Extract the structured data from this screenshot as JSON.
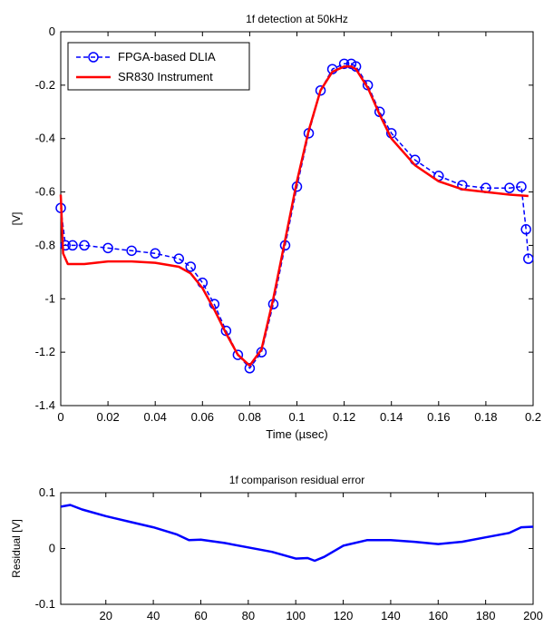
{
  "chart_data": [
    {
      "type": "line",
      "title": "1f detection at 50kHz",
      "xlabel": "Time (µsec)",
      "ylabel": "[V]",
      "xlim": [
        0,
        0.2
      ],
      "ylim": [
        -1.4,
        0
      ],
      "xticks": [
        "0",
        "0.02",
        "0.04",
        "0.06",
        "0.08",
        "0.1",
        "0.12",
        "0.14",
        "0.16",
        "0.18",
        "0.2"
      ],
      "yticks": [
        "0",
        "-0.2",
        "-0.4",
        "-0.6",
        "-0.8",
        "-1",
        "-1.2",
        "-1.4"
      ],
      "grid": false,
      "legend_position": "top-left",
      "series": [
        {
          "name": "FPGA-based DLIA",
          "color": "#0000ff",
          "style": "dashed-circle-markers",
          "x": [
            0,
            0.002,
            0.005,
            0.01,
            0.02,
            0.03,
            0.04,
            0.05,
            0.055,
            0.06,
            0.065,
            0.07,
            0.075,
            0.08,
            0.085,
            0.09,
            0.095,
            0.1,
            0.105,
            0.11,
            0.115,
            0.12,
            0.123,
            0.125,
            0.13,
            0.135,
            0.14,
            0.15,
            0.16,
            0.17,
            0.18,
            0.19,
            0.195,
            0.197,
            0.198
          ],
          "y": [
            -0.66,
            -0.8,
            -0.8,
            -0.8,
            -0.81,
            -0.82,
            -0.83,
            -0.85,
            -0.88,
            -0.94,
            -1.02,
            -1.12,
            -1.21,
            -1.26,
            -1.2,
            -1.02,
            -0.8,
            -0.58,
            -0.38,
            -0.22,
            -0.14,
            -0.12,
            -0.12,
            -0.13,
            -0.2,
            -0.3,
            -0.38,
            -0.48,
            -0.54,
            -0.575,
            -0.585,
            -0.585,
            -0.58,
            -0.74,
            -0.85
          ]
        },
        {
          "name": "SR830 Instrument",
          "color": "#ff0000",
          "style": "solid",
          "x": [
            0,
            0.001,
            0.003,
            0.01,
            0.02,
            0.03,
            0.04,
            0.05,
            0.055,
            0.06,
            0.065,
            0.07,
            0.075,
            0.08,
            0.085,
            0.09,
            0.095,
            0.1,
            0.105,
            0.11,
            0.115,
            0.12,
            0.123,
            0.125,
            0.13,
            0.135,
            0.14,
            0.15,
            0.16,
            0.17,
            0.18,
            0.19,
            0.198
          ],
          "y": [
            -0.61,
            -0.83,
            -0.87,
            -0.87,
            -0.86,
            -0.86,
            -0.865,
            -0.88,
            -0.905,
            -0.96,
            -1.04,
            -1.13,
            -1.21,
            -1.25,
            -1.19,
            -1.0,
            -0.78,
            -0.56,
            -0.37,
            -0.22,
            -0.15,
            -0.13,
            -0.13,
            -0.14,
            -0.21,
            -0.31,
            -0.4,
            -0.5,
            -0.56,
            -0.59,
            -0.6,
            -0.61,
            -0.615
          ]
        }
      ]
    },
    {
      "type": "line",
      "title": "1f comparison residual error",
      "xlabel": "",
      "ylabel": "Residual [V]",
      "xlim": [
        1,
        200
      ],
      "ylim": [
        -0.1,
        0.1
      ],
      "xticks": [
        "20",
        "40",
        "60",
        "80",
        "100",
        "120",
        "140",
        "160",
        "180",
        "200"
      ],
      "yticks": [
        "0.1",
        "0",
        "-0.1"
      ],
      "grid": false,
      "series": [
        {
          "color": "#0000ff",
          "style": "solid",
          "x": [
            1,
            5,
            10,
            20,
            30,
            40,
            50,
            55,
            60,
            70,
            80,
            90,
            100,
            105,
            108,
            112,
            120,
            130,
            140,
            150,
            160,
            170,
            180,
            190,
            195,
            200
          ],
          "y": [
            0.075,
            0.078,
            0.07,
            0.058,
            0.048,
            0.038,
            0.025,
            0.015,
            0.016,
            0.01,
            0.002,
            -0.006,
            -0.018,
            -0.017,
            -0.022,
            -0.015,
            0.005,
            0.015,
            0.015,
            0.012,
            0.008,
            0.012,
            0.02,
            0.028,
            0.038,
            0.039
          ]
        }
      ]
    }
  ]
}
